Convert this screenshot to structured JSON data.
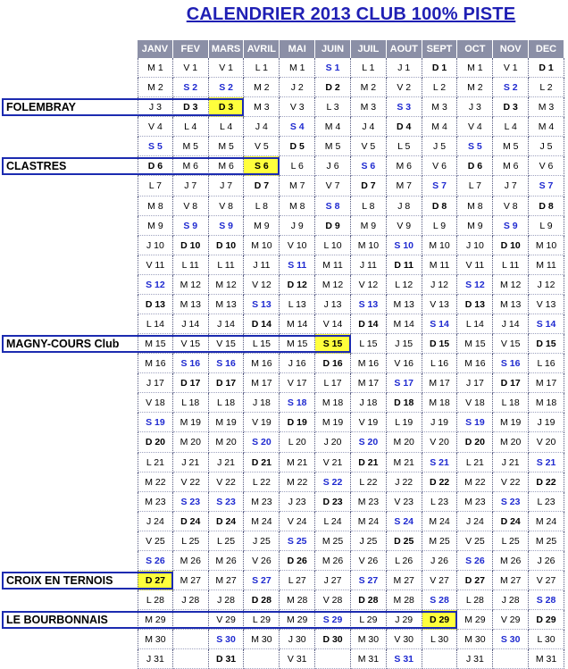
{
  "title": "CALENDRIER 2013 CLUB 100% PISTE",
  "months": [
    "JANV",
    "FEV",
    "MARS",
    "AVRIL",
    "MAI",
    "JUIN",
    "JUIL",
    "AOUT",
    "SEPT",
    "OCT",
    "NOV",
    "DEC"
  ],
  "grid": [
    [
      "M 1",
      "V 1",
      "V 1",
      "L 1",
      "M 1",
      "S 1",
      "L 1",
      "J 1",
      "D 1",
      "M 1",
      "V 1",
      "D 1"
    ],
    [
      "M 2",
      "S 2",
      "S 2",
      "M 2",
      "J 2",
      "D 2",
      "M 2",
      "V 2",
      "L 2",
      "M 2",
      "S 2",
      "L 2"
    ],
    [
      "J 3",
      "D 3",
      "D 3",
      "M 3",
      "V 3",
      "L 3",
      "M 3",
      "S 3",
      "M 3",
      "J 3",
      "D 3",
      "M 3"
    ],
    [
      "V 4",
      "L 4",
      "L 4",
      "J 4",
      "S 4",
      "M 4",
      "J 4",
      "D 4",
      "M 4",
      "V 4",
      "L 4",
      "M 4"
    ],
    [
      "S 5",
      "M 5",
      "M 5",
      "V 5",
      "D 5",
      "M 5",
      "V 5",
      "L 5",
      "J 5",
      "S 5",
      "M 5",
      "J 5"
    ],
    [
      "D 6",
      "M 6",
      "M 6",
      "S 6",
      "L 6",
      "J 6",
      "S 6",
      "M 6",
      "V 6",
      "D 6",
      "M 6",
      "V 6"
    ],
    [
      "L 7",
      "J 7",
      "J 7",
      "D 7",
      "M 7",
      "V 7",
      "D 7",
      "M 7",
      "S 7",
      "L 7",
      "J 7",
      "S 7"
    ],
    [
      "M 8",
      "V 8",
      "V 8",
      "L 8",
      "M 8",
      "S 8",
      "L 8",
      "J 8",
      "D 8",
      "M 8",
      "V 8",
      "D 8"
    ],
    [
      "M 9",
      "S 9",
      "S 9",
      "M 9",
      "J 9",
      "D 9",
      "M 9",
      "V 9",
      "L 9",
      "M 9",
      "S 9",
      "L 9"
    ],
    [
      "J 10",
      "D 10",
      "D 10",
      "M 10",
      "V 10",
      "L 10",
      "M 10",
      "S 10",
      "M 10",
      "J 10",
      "D 10",
      "M 10"
    ],
    [
      "V 11",
      "L 11",
      "L 11",
      "J 11",
      "S 11",
      "M 11",
      "J 11",
      "D 11",
      "M 11",
      "V 11",
      "L 11",
      "M 11"
    ],
    [
      "S 12",
      "M 12",
      "M 12",
      "V 12",
      "D 12",
      "M 12",
      "V 12",
      "L 12",
      "J 12",
      "S 12",
      "M 12",
      "J 12"
    ],
    [
      "D 13",
      "M 13",
      "M 13",
      "S 13",
      "L 13",
      "J 13",
      "S 13",
      "M 13",
      "V 13",
      "D 13",
      "M 13",
      "V 13"
    ],
    [
      "L 14",
      "J 14",
      "J 14",
      "D 14",
      "M 14",
      "V 14",
      "D 14",
      "M 14",
      "S 14",
      "L 14",
      "J 14",
      "S 14"
    ],
    [
      "M 15",
      "V 15",
      "V 15",
      "L 15",
      "M 15",
      "S 15",
      "L 15",
      "J 15",
      "D 15",
      "M 15",
      "V 15",
      "D 15"
    ],
    [
      "M 16",
      "S 16",
      "S 16",
      "M 16",
      "J 16",
      "D 16",
      "M 16",
      "V 16",
      "L 16",
      "M 16",
      "S 16",
      "L 16"
    ],
    [
      "J 17",
      "D 17",
      "D 17",
      "M 17",
      "V 17",
      "L 17",
      "M 17",
      "S 17",
      "M 17",
      "J 17",
      "D 17",
      "M 17"
    ],
    [
      "V 18",
      "L 18",
      "L 18",
      "J 18",
      "S 18",
      "M 18",
      "J 18",
      "D 18",
      "M 18",
      "V 18",
      "L 18",
      "M 18"
    ],
    [
      "S 19",
      "M 19",
      "M 19",
      "V 19",
      "D 19",
      "M 19",
      "V 19",
      "L 19",
      "J 19",
      "S 19",
      "M 19",
      "J 19"
    ],
    [
      "D 20",
      "M 20",
      "M 20",
      "S 20",
      "L 20",
      "J 20",
      "S 20",
      "M 20",
      "V 20",
      "D 20",
      "M 20",
      "V 20"
    ],
    [
      "L 21",
      "J 21",
      "J 21",
      "D 21",
      "M 21",
      "V 21",
      "D 21",
      "M 21",
      "S 21",
      "L 21",
      "J 21",
      "S 21"
    ],
    [
      "M 22",
      "V 22",
      "V 22",
      "L 22",
      "M 22",
      "S 22",
      "L 22",
      "J 22",
      "D 22",
      "M 22",
      "V 22",
      "D 22"
    ],
    [
      "M 23",
      "S 23",
      "S 23",
      "M 23",
      "J 23",
      "D 23",
      "M 23",
      "V 23",
      "L 23",
      "M 23",
      "S 23",
      "L 23"
    ],
    [
      "J 24",
      "D 24",
      "D 24",
      "M 24",
      "V 24",
      "L 24",
      "M 24",
      "S 24",
      "M 24",
      "J 24",
      "D 24",
      "M 24"
    ],
    [
      "V 25",
      "L 25",
      "L 25",
      "J 25",
      "S 25",
      "M 25",
      "J 25",
      "D 25",
      "M 25",
      "V 25",
      "L 25",
      "M 25"
    ],
    [
      "S 26",
      "M 26",
      "M 26",
      "V 26",
      "D 26",
      "M 26",
      "V 26",
      "L 26",
      "J 26",
      "S 26",
      "M 26",
      "J 26"
    ],
    [
      "D 27",
      "M 27",
      "M 27",
      "S 27",
      "L 27",
      "J 27",
      "S 27",
      "M 27",
      "V 27",
      "D 27",
      "M 27",
      "V 27"
    ],
    [
      "L 28",
      "J 28",
      "J 28",
      "D 28",
      "M 28",
      "V 28",
      "D 28",
      "M 28",
      "S 28",
      "L 28",
      "J 28",
      "S 28"
    ],
    [
      "M 29",
      "",
      "V 29",
      "L 29",
      "M 29",
      "S 29",
      "L 29",
      "J 29",
      "D 29",
      "M 29",
      "V 29",
      "D 29"
    ],
    [
      "M 30",
      "",
      "S 30",
      "M 30",
      "J 30",
      "D 30",
      "M 30",
      "V 30",
      "L 30",
      "M 30",
      "S 30",
      "L 30"
    ],
    [
      "J 31",
      "",
      "D 31",
      "",
      "V 31",
      "",
      "M 31",
      "S 31",
      "",
      "J 31",
      "",
      "M 31"
    ]
  ],
  "highlights": [
    {
      "row": 2,
      "col": 2
    },
    {
      "row": 5,
      "col": 3
    },
    {
      "row": 14,
      "col": 5
    },
    {
      "row": 26,
      "col": 0
    },
    {
      "row": 28,
      "col": 8
    }
  ],
  "events": [
    {
      "label": "FOLEMBRAY",
      "row": 2,
      "end_col": 2
    },
    {
      "label": "CLASTRES",
      "row": 5,
      "end_col": 3
    },
    {
      "label": "MAGNY-COURS Club",
      "row": 14,
      "end_col": 5
    },
    {
      "label": "CROIX EN TERNOIS",
      "row": 26,
      "end_col": 0
    },
    {
      "label": "LE BOURBONNAIS",
      "row": 28,
      "end_col": 8
    }
  ],
  "colors": {
    "saturday": "#1f2ad0",
    "highlight": "#ffff3c",
    "event_border": "#1c2bb0",
    "header_bg": "#8b8fa6"
  }
}
